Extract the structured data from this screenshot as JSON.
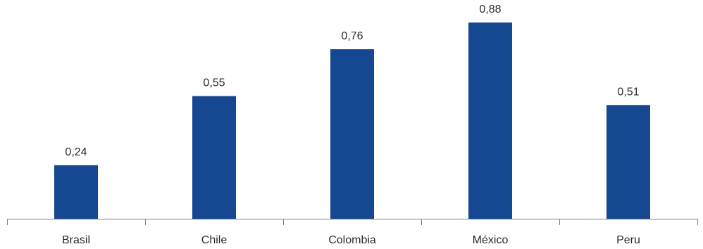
{
  "chart_data": {
    "type": "bar",
    "categories": [
      "Brasil",
      "Chile",
      "Colombia",
      "México",
      "Peru"
    ],
    "values": [
      0.24,
      0.55,
      0.76,
      0.88,
      0.51
    ],
    "value_labels": [
      "0,24",
      "0,55",
      "0,76",
      "0,88",
      "0,51"
    ],
    "title": "",
    "xlabel": "",
    "ylabel": "",
    "ylim": [
      0,
      1
    ],
    "grid": false,
    "legend": "none",
    "bar_color": "#164891",
    "axis_color": "#7f7f7f",
    "text_color": "#2b2b2b"
  }
}
